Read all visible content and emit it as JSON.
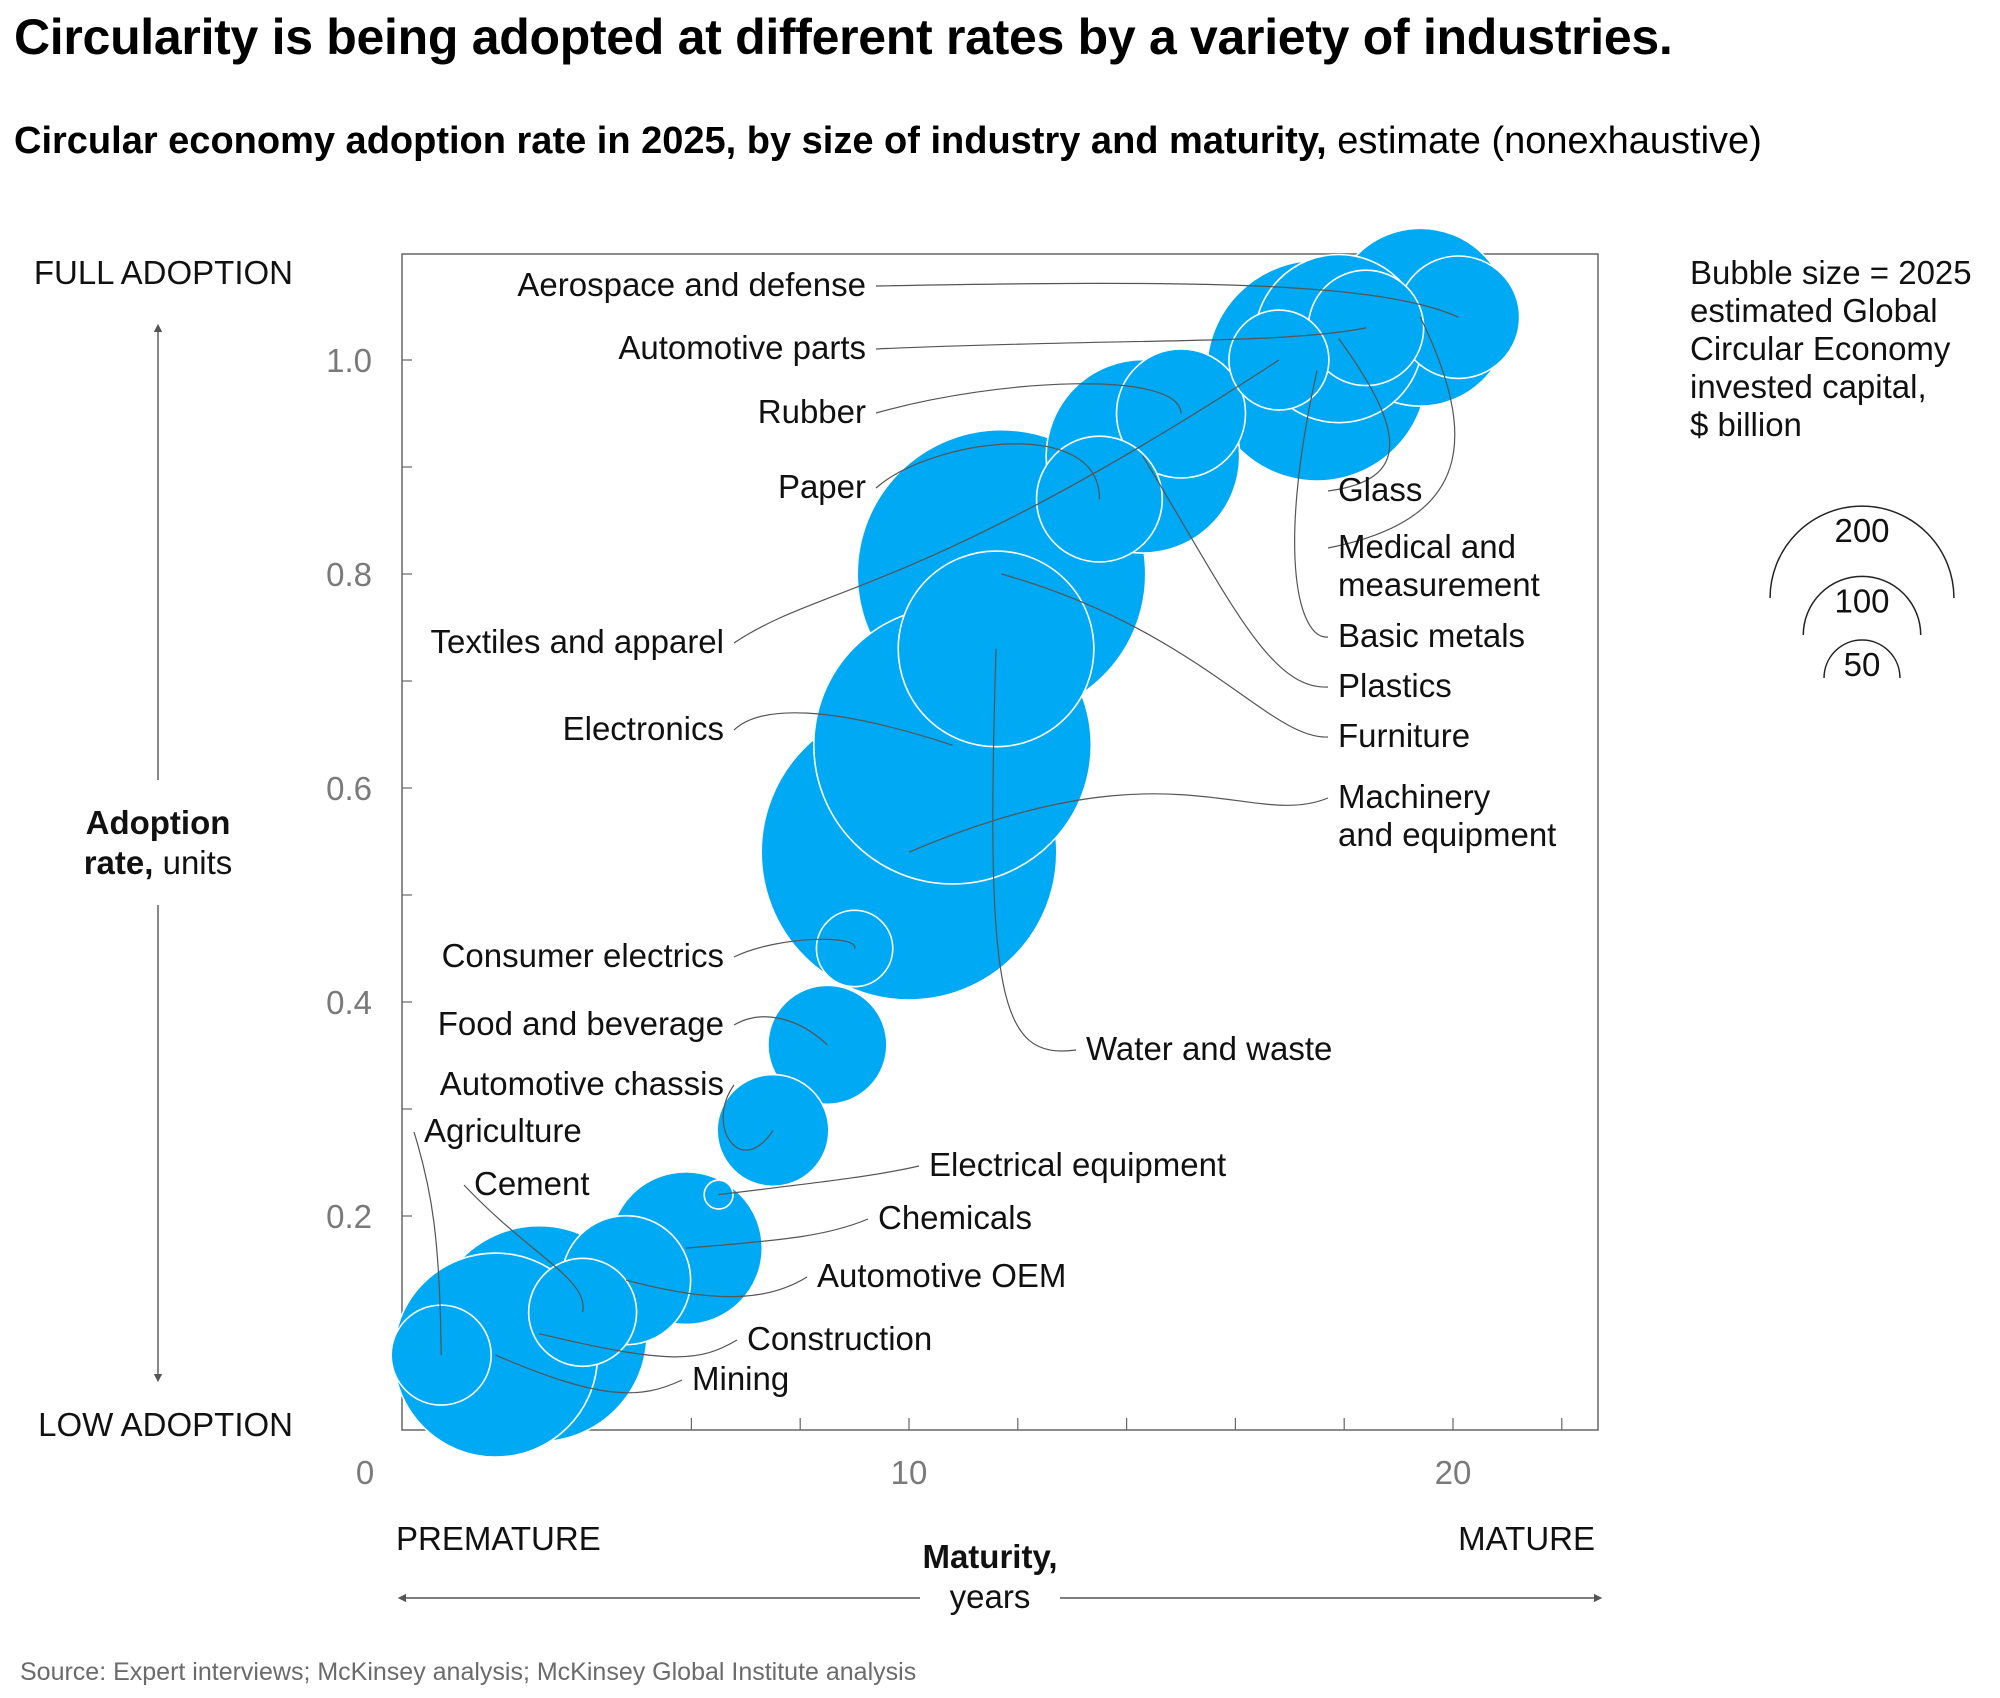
{
  "title": "Circularity is being adopted at different rates by a variety of industries.",
  "subtitle_bold": "Circular economy adoption rate in 2025, by size of industry and maturity,",
  "subtitle_regular": " estimate (nonexhaustive)",
  "source": "Source: Expert interviews; McKinsey analysis; McKinsey Global Institute analysis",
  "colors": {
    "bubble": "#00A9F4",
    "axis": "#555555",
    "tick_label": "#7a7a7a",
    "leader": "#555555"
  },
  "chart_data": {
    "type": "scatter",
    "variant": "bubble",
    "x_axis": {
      "label_bold": "Maturity,",
      "label_regular": "years",
      "range": [
        0,
        22
      ],
      "ticks": [
        0,
        10,
        20
      ],
      "tick_labels": [
        "0",
        "10",
        "20"
      ],
      "left_end_label": "PREMATURE",
      "right_end_label": "MATURE"
    },
    "y_axis": {
      "label_bold": "Adoption rate,",
      "label_regular": "units",
      "range": [
        0,
        1.1
      ],
      "ticks": [
        0.2,
        0.4,
        0.6,
        0.8,
        1.0
      ],
      "tick_labels": [
        "0.2",
        "0.4",
        "0.6",
        "0.8",
        "1.0"
      ],
      "top_end_label": "FULL ADOPTION",
      "bottom_end_label": "LOW ADOPTION"
    },
    "legend": {
      "title_lines": [
        "Bubble size = 2025",
        "estimated Global",
        "Circular Economy",
        "invested capital,",
        "$ billion"
      ],
      "sizes": [
        200,
        100,
        50
      ],
      "size_labels": [
        "200",
        "100",
        "50"
      ],
      "placement": "right"
    },
    "series": [
      {
        "label": "Machinery and equipment",
        "x": 10.0,
        "y": 0.54,
        "size": 210
      },
      {
        "label": "Furniture",
        "x": 11.7,
        "y": 0.8,
        "size": 200
      },
      {
        "label": "Electronics",
        "x": 10.8,
        "y": 0.64,
        "size": 185
      },
      {
        "label": "Water and waste",
        "x": 11.6,
        "y": 0.73,
        "size": 92
      },
      {
        "label": "Basic metals",
        "x": 17.5,
        "y": 0.99,
        "size": 117
      },
      {
        "label": "Plastics",
        "x": 14.3,
        "y": 0.91,
        "size": 90
      },
      {
        "label": "Medical and measurement",
        "x": 19.4,
        "y": 1.04,
        "size": 76
      },
      {
        "label": "Glass",
        "x": 17.9,
        "y": 1.02,
        "size": 68
      },
      {
        "label": "Aerospace and defense",
        "x": 20.1,
        "y": 1.04,
        "size": 36
      },
      {
        "label": "Automotive parts",
        "x": 18.4,
        "y": 1.03,
        "size": 32
      },
      {
        "label": "Rubber",
        "x": 15.0,
        "y": 0.95,
        "size": 40
      },
      {
        "label": "Paper",
        "x": 13.5,
        "y": 0.87,
        "size": 38
      },
      {
        "label": "Textiles and apparel",
        "x": 16.8,
        "y": 1.0,
        "size": 24
      },
      {
        "label": "Consumer electrics",
        "x": 9.0,
        "y": 0.45,
        "size": 14
      },
      {
        "label": "Food and beverage",
        "x": 8.5,
        "y": 0.36,
        "size": 34
      },
      {
        "label": "Automotive chassis",
        "x": 7.5,
        "y": 0.28,
        "size": 30
      },
      {
        "label": "Electrical equipment",
        "x": 6.5,
        "y": 0.22,
        "size": 2
      },
      {
        "label": "Chemicals",
        "x": 5.9,
        "y": 0.17,
        "size": 56
      },
      {
        "label": "Automotive OEM",
        "x": 4.8,
        "y": 0.14,
        "size": 40
      },
      {
        "label": "Construction",
        "x": 3.2,
        "y": 0.09,
        "size": 112
      },
      {
        "label": "Mining",
        "x": 2.4,
        "y": 0.07,
        "size": 100
      },
      {
        "label": "Agriculture",
        "x": 1.4,
        "y": 0.07,
        "size": 24
      },
      {
        "label": "Cement",
        "x": 4.0,
        "y": 0.11,
        "size": 28
      }
    ]
  }
}
